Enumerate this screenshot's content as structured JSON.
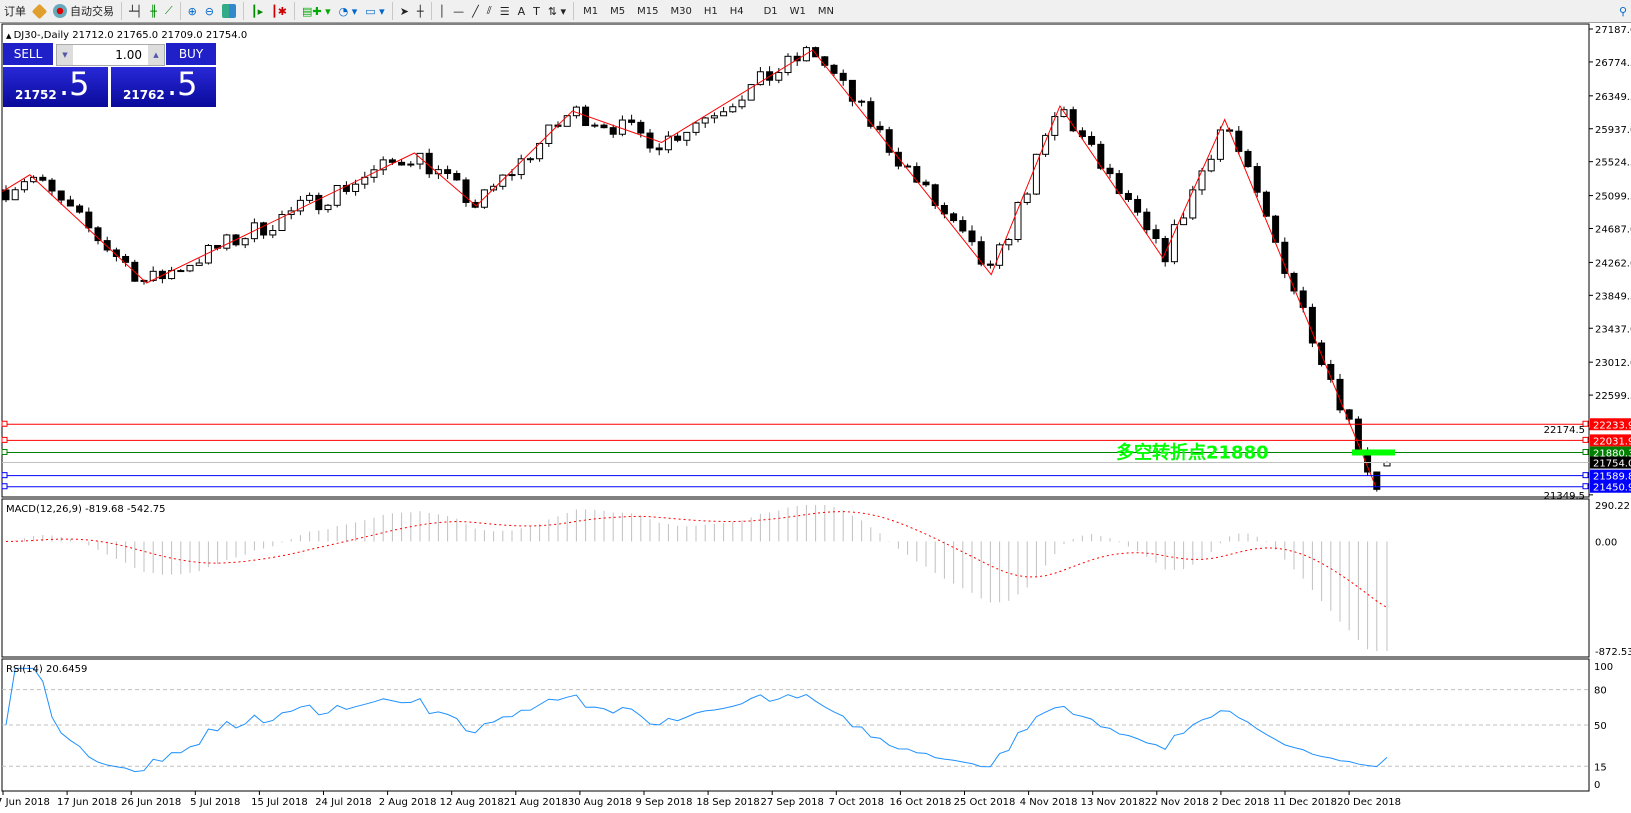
{
  "toolbar": {
    "left_items": [
      "订单",
      "自动交易"
    ],
    "timeframes": [
      "M1",
      "M5",
      "M15",
      "M30",
      "H1",
      "H4",
      "D1",
      "W1",
      "MN"
    ]
  },
  "chart": {
    "header": "DJ30-,Daily  21712.0 21765.0 21709.0 21754.0",
    "symbol": "DJ30-",
    "period": "Daily",
    "last_bar": {
      "open": 21712.0,
      "high": 21765.0,
      "low": 21709.0,
      "close": 21754.0
    },
    "price_axis": [
      "27187.0",
      "26774.5",
      "26349.5",
      "25937.0",
      "25524.5",
      "25099.5",
      "24687.0",
      "24262.0",
      "23849.5",
      "23437.0",
      "23012.0",
      "22599.5",
      "22174.5",
      "21349.5"
    ],
    "price_range": [
      21349.5,
      27187.0
    ],
    "date_axis": [
      "7 Jun 2018",
      "17 Jun 2018",
      "26 Jun 2018",
      "5 Jul 2018",
      "15 Jul 2018",
      "24 Jul 2018",
      "2 Aug 2018",
      "12 Aug 2018",
      "21 Aug 2018",
      "30 Aug 2018",
      "9 Sep 2018",
      "18 Sep 2018",
      "27 Sep 2018",
      "7 Oct 2018",
      "16 Oct 2018",
      "25 Oct 2018",
      "4 Nov 2018",
      "13 Nov 2018",
      "22 Nov 2018",
      "2 Dec 2018",
      "11 Dec 2018",
      "20 Dec 2018"
    ],
    "zigzag": [
      [
        "2018-06-04",
        25150
      ],
      [
        "2018-06-08",
        25360
      ],
      [
        "2018-06-25",
        24004
      ],
      [
        "2018-08-03",
        25633
      ],
      [
        "2018-08-12",
        24969
      ],
      [
        "2018-08-26",
        26159
      ],
      [
        "2018-09-08",
        25765
      ],
      [
        "2018-09-30",
        26924
      ],
      [
        "2018-10-26",
        24109
      ],
      [
        "2018-11-05",
        26222
      ],
      [
        "2018-11-20",
        24317
      ],
      [
        "2018-11-29",
        26052
      ],
      [
        "2018-12-21",
        21450.9
      ],
      [
        "2018-12-24",
        21754
      ]
    ],
    "hlines": [
      {
        "price": "22233.9",
        "color": "#ff0000"
      },
      {
        "price": "22031.9",
        "color": "#ff0000"
      },
      {
        "price": "21880.3",
        "color": "#008000"
      },
      {
        "price": "21754.0",
        "color": "#000000",
        "line": "#c0c0c0"
      },
      {
        "price": "21589.8",
        "color": "#0000ff"
      },
      {
        "price": "21450.9",
        "color": "#0000ff"
      }
    ],
    "annotation": "多空转折点21880",
    "annotation_color": "#00ff00"
  },
  "trade_panel": {
    "sell_label": "SELL",
    "buy_label": "BUY",
    "volume": "1.00",
    "sell_price_main": "21752",
    "sell_price_frac": ".5",
    "buy_price_main": "21762",
    "buy_price_frac": ".5"
  },
  "macd": {
    "label": "MACD(12,26,9) -819.68 -542.75",
    "axis": [
      "290.22",
      "0.00",
      "-872.53"
    ],
    "range": [
      -872.53,
      290.22
    ]
  },
  "rsi": {
    "label": "RSI(14) 20.6459",
    "axis": [
      "100",
      "80",
      "50",
      "15",
      "0"
    ],
    "levels": [
      80,
      50,
      15
    ]
  }
}
